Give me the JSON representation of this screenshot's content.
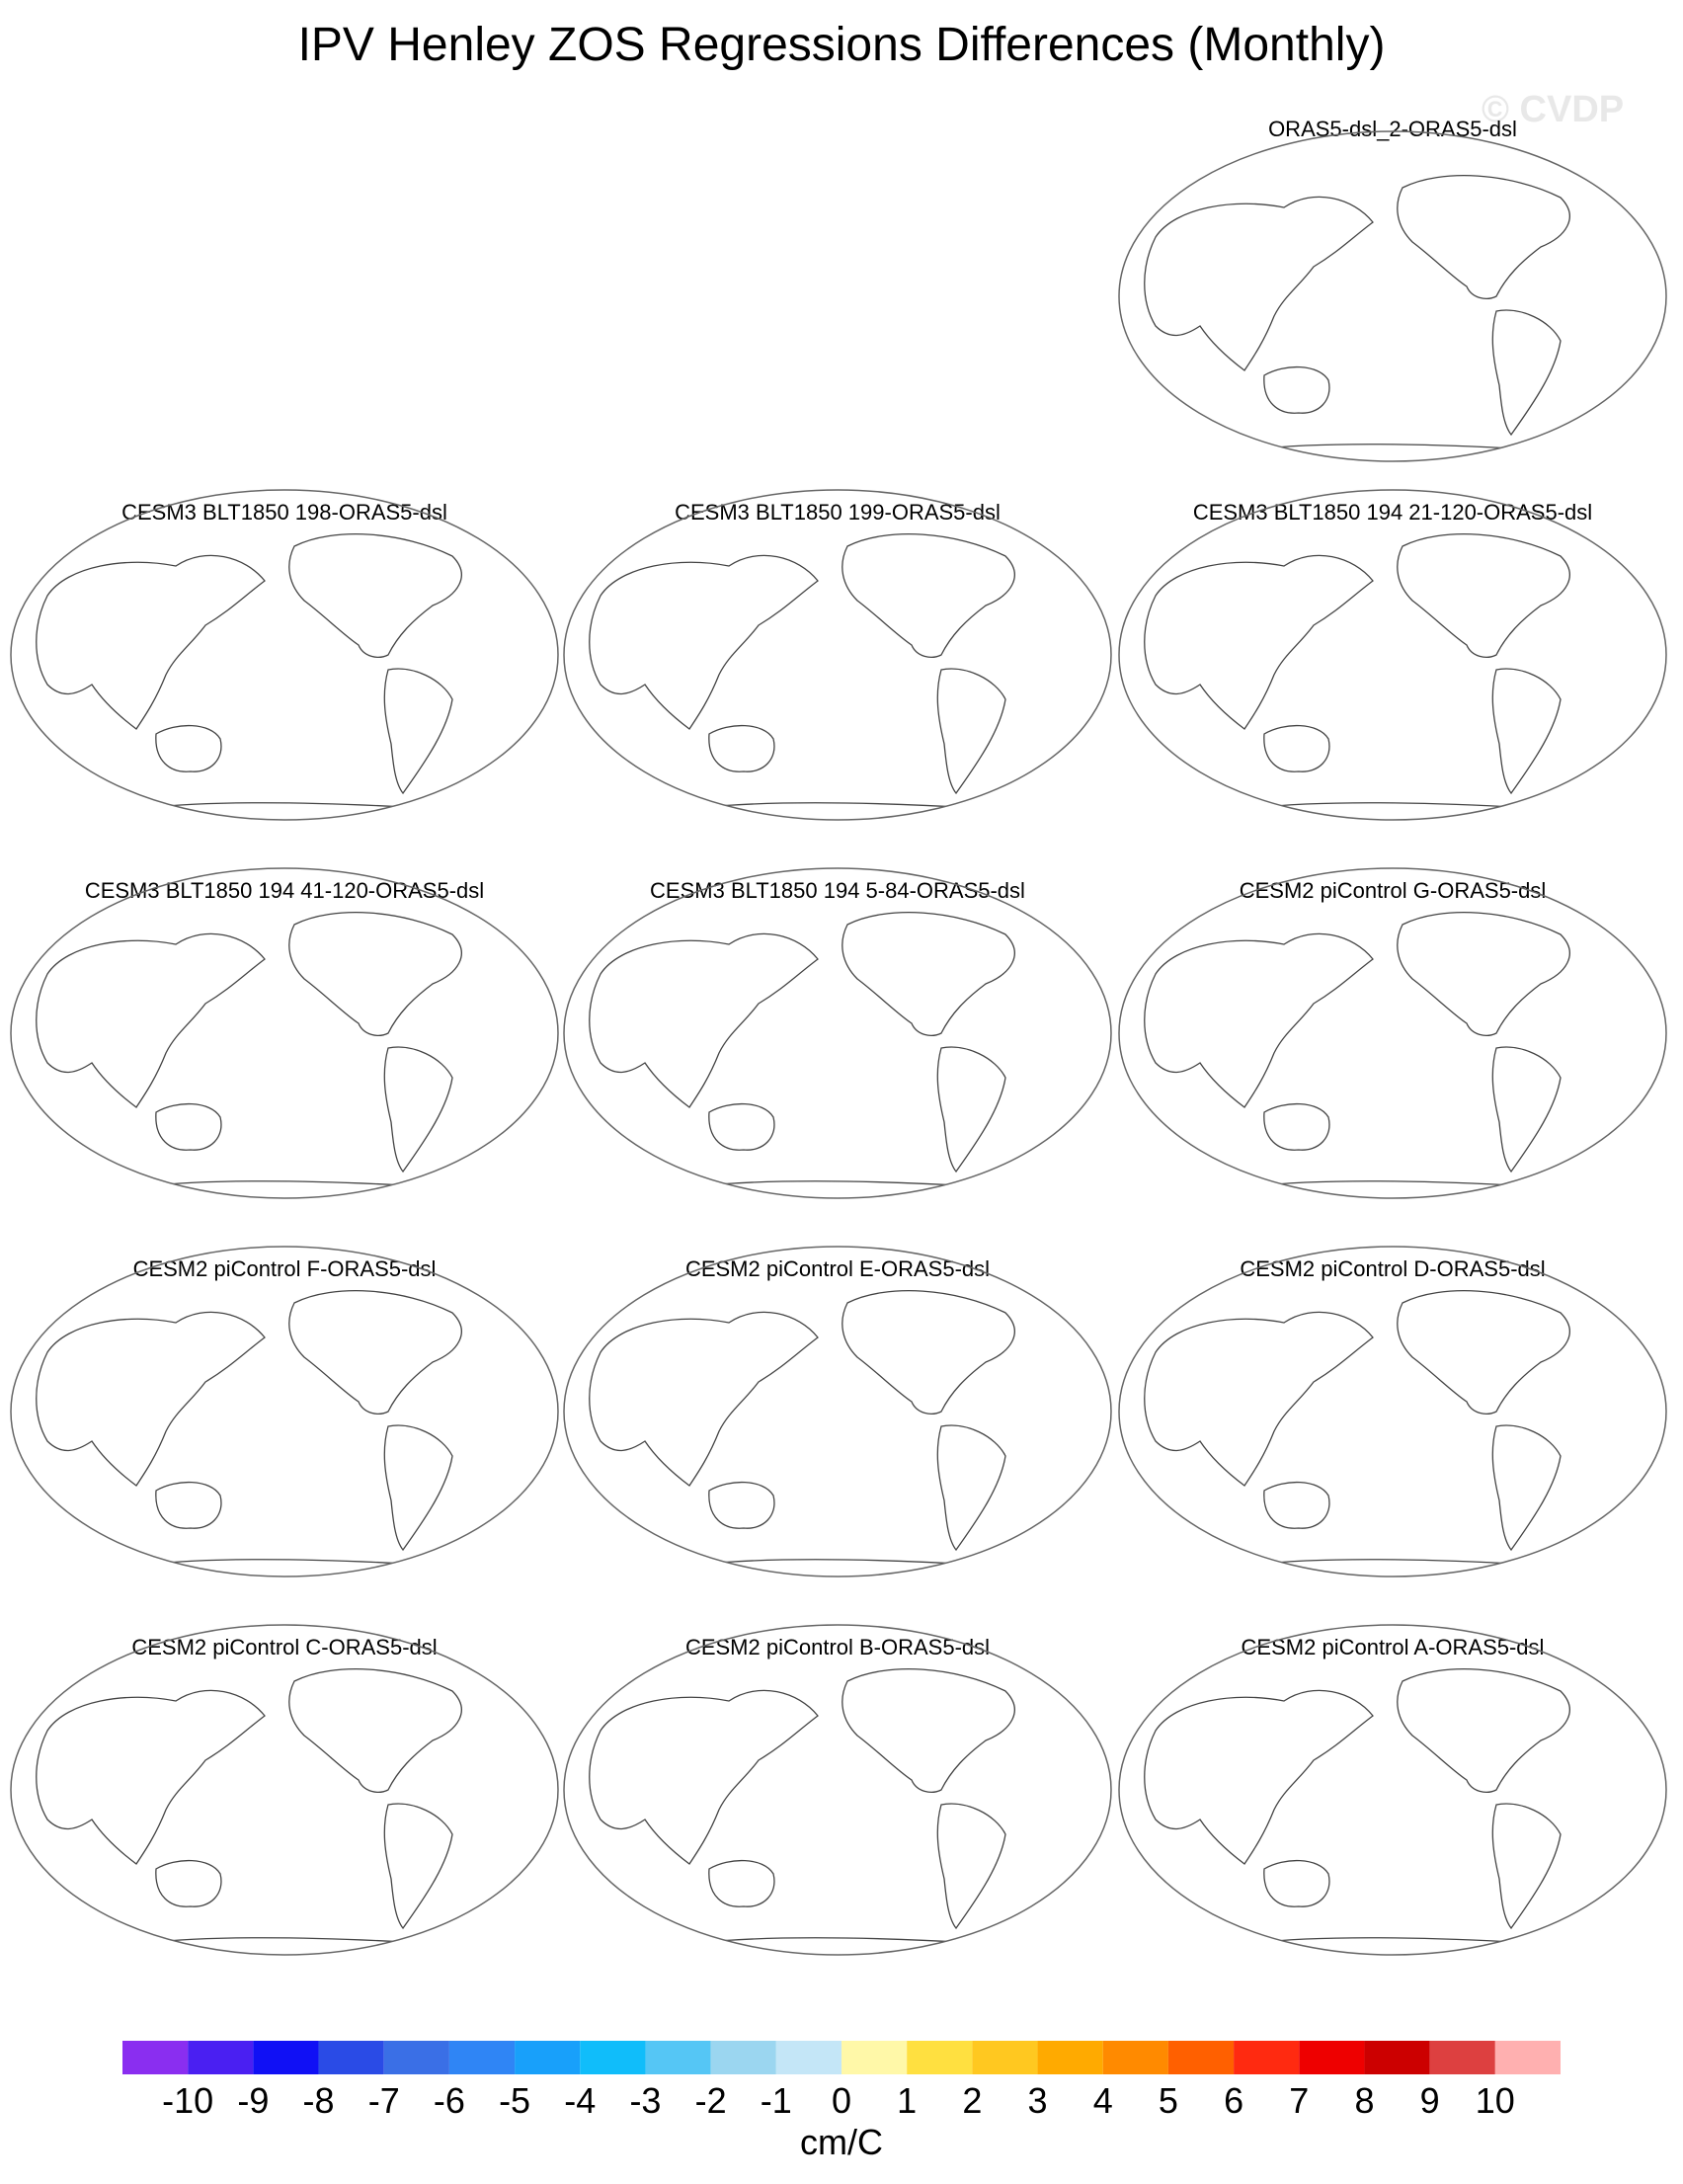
{
  "title": "IPV Henley ZOS Regressions Differences (Monthly)",
  "watermark": "© CVDP",
  "panels": [
    {
      "title": "ORAS5-dsl_2-ORAS5-dsl"
    },
    {
      "title": "CESM3 BLT1850 198-ORAS5-dsl"
    },
    {
      "title": "CESM3 BLT1850 199-ORAS5-dsl"
    },
    {
      "title": "CESM3 BLT1850 194 21-120-ORAS5-dsl"
    },
    {
      "title": "CESM3 BLT1850 194 41-120-ORAS5-dsl"
    },
    {
      "title": "CESM3 BLT1850 194 5-84-ORAS5-dsl"
    },
    {
      "title": "CESM2 piControl G-ORAS5-dsl"
    },
    {
      "title": "CESM2 piControl F-ORAS5-dsl"
    },
    {
      "title": "CESM2 piControl E-ORAS5-dsl"
    },
    {
      "title": "CESM2 piControl D-ORAS5-dsl"
    },
    {
      "title": "CESM2 piControl C-ORAS5-dsl"
    },
    {
      "title": "CESM2 piControl B-ORAS5-dsl"
    },
    {
      "title": "CESM2 piControl A-ORAS5-dsl"
    }
  ],
  "colorbar": {
    "units": "cm/C",
    "labels": [
      "-10",
      "-9",
      "-8",
      "-7",
      "-6",
      "-5",
      "-4",
      "-3",
      "-2",
      "-1",
      "0",
      "1",
      "2",
      "3",
      "4",
      "5",
      "6",
      "7",
      "8",
      "9",
      "10"
    ],
    "colors": [
      "#8a2ef0",
      "#4a1ff2",
      "#1010f5",
      "#2a4be6",
      "#3a6fe6",
      "#2f85f5",
      "#18a0fa",
      "#10bdfa",
      "#55c6f5",
      "#9bd6f0",
      "#c4e6f7",
      "#fff8a8",
      "#ffe040",
      "#ffc820",
      "#ffaa00",
      "#ff8a00",
      "#ff6000",
      "#ff2a10",
      "#ee0000",
      "#cc0000",
      "#dd4040",
      "#ffb0b0"
    ]
  }
}
